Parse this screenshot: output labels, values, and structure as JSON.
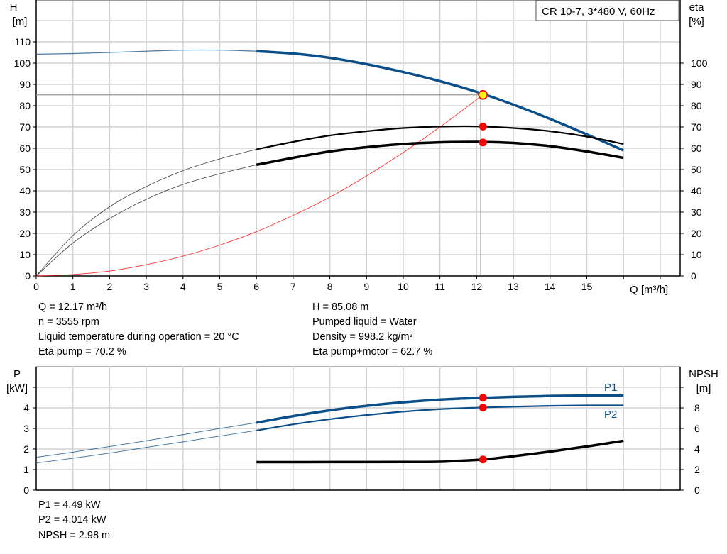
{
  "chart_data": [
    {
      "type": "line",
      "title": "CR 10-7, 3*480 V, 60Hz",
      "xlabel": "Q [m³/h]",
      "ylabel": "H\n[m]",
      "ylabel_lines": [
        "H",
        "[m]"
      ],
      "y2label_lines": [
        "eta",
        "[%]"
      ],
      "xlim": [
        0,
        17.5
      ],
      "ylim": [
        0,
        120
      ],
      "y2lim": [
        0,
        120
      ],
      "x_ticks": [
        "0",
        "1",
        "2",
        "3",
        "4",
        "5",
        "6",
        "7",
        "8",
        "9",
        "10",
        "11",
        "12",
        "13",
        "14",
        "15"
      ],
      "y_ticks": [
        "0",
        "10",
        "20",
        "30",
        "40",
        "50",
        "60",
        "70",
        "80",
        "90",
        "100",
        "110"
      ],
      "y2_ticks": [
        "0",
        "10",
        "20",
        "30",
        "40",
        "50",
        "60",
        "70",
        "80",
        "90",
        "100"
      ],
      "grid": true,
      "series": [
        {
          "key": "head",
          "color": "#0b4f8a",
          "axis": "left",
          "x": [
            0,
            1,
            2,
            3,
            4,
            5,
            6,
            7,
            8,
            9,
            10,
            11,
            12,
            13,
            14,
            15,
            16
          ],
          "y": [
            104.2,
            104.5,
            105,
            105.6,
            106.1,
            106.1,
            105.6,
            104.5,
            102.5,
            99.5,
            95.8,
            91.5,
            86.5,
            80.5,
            73.8,
            66.5,
            59
          ]
        },
        {
          "key": "eta-pump",
          "color": "#000000",
          "axis": "right",
          "x": [
            0,
            1,
            2,
            3,
            4,
            5,
            6,
            7,
            8,
            9,
            10,
            11,
            12,
            13,
            14,
            15,
            16
          ],
          "y": [
            0,
            19,
            32.5,
            42,
            49.5,
            55,
            59.5,
            63,
            66,
            68,
            69.5,
            70.2,
            70.3,
            69.5,
            68,
            65.5,
            62
          ]
        },
        {
          "key": "eta-pump-motor",
          "color": "#000000",
          "axis": "right",
          "x": [
            0,
            1,
            2,
            3,
            4,
            5,
            6,
            7,
            8,
            9,
            10,
            11,
            12,
            13,
            14,
            15,
            16
          ],
          "y": [
            0,
            15.5,
            27,
            36,
            43,
            48,
            52.2,
            55.5,
            58.5,
            60.5,
            62,
            62.8,
            63,
            62.5,
            61,
            58.5,
            55.5
          ]
        },
        {
          "key": "system-curve",
          "color": "#ff3030",
          "axis": "left",
          "x": [
            0,
            1,
            2,
            3,
            4,
            5,
            6,
            7,
            8,
            9,
            10,
            11,
            12.17
          ],
          "y": [
            0,
            0.7,
            2.3,
            5.3,
            9.3,
            14.5,
            20.8,
            28.5,
            37,
            47,
            58,
            70,
            85.08
          ]
        }
      ],
      "operating_point": {
        "q": 12.17,
        "h": 85.08,
        "eta_pump": 70.2,
        "eta_pump_motor": 62.7
      }
    },
    {
      "type": "line",
      "ylabel_lines": [
        "P",
        "[kW]"
      ],
      "y2label_lines": [
        "NPSH",
        "[m]"
      ],
      "xlim": [
        0,
        17.5
      ],
      "ylim": [
        0,
        5
      ],
      "y2lim": [
        0,
        10
      ],
      "y_ticks": [
        "0",
        "1",
        "2",
        "3",
        "4",
        ""
      ],
      "y2_ticks": [
        "0",
        "2",
        "4",
        "6",
        "8",
        ""
      ],
      "grid": true,
      "series": [
        {
          "name": "P1",
          "color": "#0b4f8a",
          "axis": "left",
          "x": [
            0,
            1,
            2,
            3,
            4,
            5,
            6,
            7,
            8,
            9,
            10,
            11,
            12,
            13,
            14,
            15,
            16
          ],
          "y": [
            1.6,
            1.85,
            2.12,
            2.4,
            2.7,
            3.0,
            3.28,
            3.6,
            3.88,
            4.1,
            4.27,
            4.4,
            4.48,
            4.54,
            4.58,
            4.6,
            4.6
          ]
        },
        {
          "name": "P2",
          "color": "#0b4f8a",
          "axis": "left",
          "x": [
            0,
            1,
            2,
            3,
            4,
            5,
            6,
            7,
            8,
            9,
            10,
            11,
            12,
            13,
            14,
            15,
            16
          ],
          "y": [
            1.32,
            1.55,
            1.8,
            2.08,
            2.35,
            2.63,
            2.9,
            3.2,
            3.45,
            3.65,
            3.82,
            3.94,
            4.01,
            4.06,
            4.1,
            4.12,
            4.12
          ]
        },
        {
          "key": "npsh",
          "color": "#000000",
          "axis": "right",
          "x": [
            0,
            2,
            4,
            6,
            8,
            10,
            11,
            11.5,
            12.17,
            13,
            14,
            15,
            16
          ],
          "y": [
            2.72,
            2.72,
            2.72,
            2.72,
            2.73,
            2.74,
            2.76,
            2.85,
            2.98,
            3.3,
            3.75,
            4.25,
            4.8
          ]
        }
      ],
      "operating_point": {
        "q": 12.17,
        "p1": 4.49,
        "p2": 4.014,
        "npsh": 2.98
      }
    }
  ],
  "info_top": {
    "q": "Q = 12.17 m³/h",
    "n": "n = 3555 rpm",
    "temp": "Liquid temperature during operation = 20 °C",
    "eta_pump": "Eta pump = 70.2 %",
    "h": "H = 85.08 m",
    "liquid": "Pumped liquid = Water",
    "density": "Density = 998.2 kg/m³",
    "eta_pump_motor": "Eta pump+motor = 62.7 %"
  },
  "info_bottom": {
    "p1": "P1 = 4.49 kW",
    "p2": "P2 = 4.014 kW",
    "npsh": "NPSH = 2.98 m"
  }
}
